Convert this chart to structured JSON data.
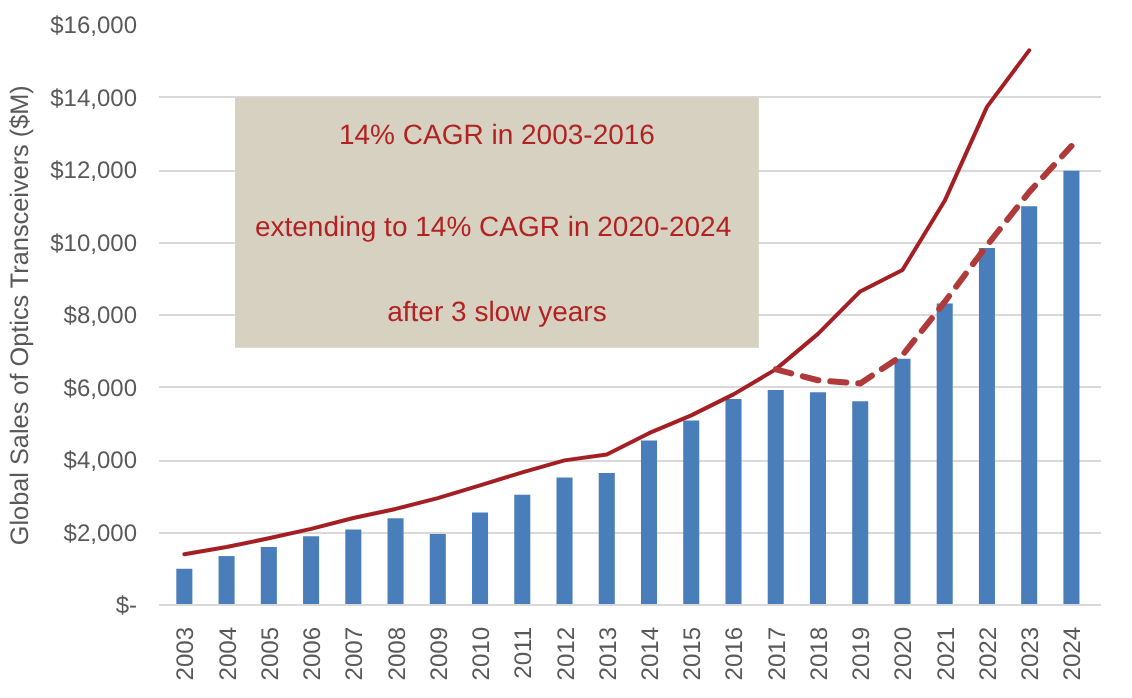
{
  "chart_data": {
    "type": "bar",
    "ylabel": "Global Sales of Optics Transceivers ($M)",
    "categories": [
      "2003",
      "2004",
      "2005",
      "2006",
      "2007",
      "2008",
      "2009",
      "2010",
      "2011",
      "2012",
      "2013",
      "2014",
      "2015",
      "2016",
      "2017",
      "2018",
      "2019",
      "2020",
      "2021",
      "2022",
      "2023",
      "2024"
    ],
    "series": [
      {
        "color": "#4a7ebb",
        "values": [
          1000,
          1350,
          1600,
          1900,
          2080,
          2390,
          1960,
          2550,
          3040,
          3520,
          3640,
          4540,
          5090,
          5680,
          5930,
          5870,
          5620,
          6790,
          8320,
          9850,
          11000,
          11980
        ]
      },
      {
        "type": "line",
        "color": "#a31f24",
        "line_style": "solid",
        "values": [
          1400,
          1600,
          1840,
          2100,
          2400,
          2650,
          2950,
          3300,
          3660,
          3990,
          4150,
          4740,
          5230,
          5810,
          6500,
          7480,
          8650,
          9240,
          11150,
          13740,
          15300,
          null
        ]
      },
      {
        "type": "line",
        "color": "#b03a3a",
        "line_style": "dashed",
        "values": [
          null,
          null,
          null,
          null,
          null,
          null,
          null,
          null,
          null,
          null,
          null,
          null,
          null,
          null,
          6500,
          6200,
          6110,
          6890,
          8360,
          9920,
          11390,
          12660
        ]
      }
    ],
    "ylim": [
      0,
      16000
    ],
    "yticks": [
      {
        "value": 0,
        "label": "$-"
      },
      {
        "value": 2000,
        "label": "$2,000"
      },
      {
        "value": 4000,
        "label": "$4,000"
      },
      {
        "value": 6000,
        "label": "$6,000"
      },
      {
        "value": 8000,
        "label": "$8,000"
      },
      {
        "value": 10000,
        "label": "$10,000"
      },
      {
        "value": 12000,
        "label": "$12,000"
      },
      {
        "value": 14000,
        "label": "$14,000"
      },
      {
        "value": 16000,
        "label": "$16,000"
      }
    ],
    "grid": "y",
    "annotations": [
      "14% CAGR in 2003-2016",
      "extending to  14% CAGR in 2020-2024",
      "after 3 slow years"
    ]
  }
}
